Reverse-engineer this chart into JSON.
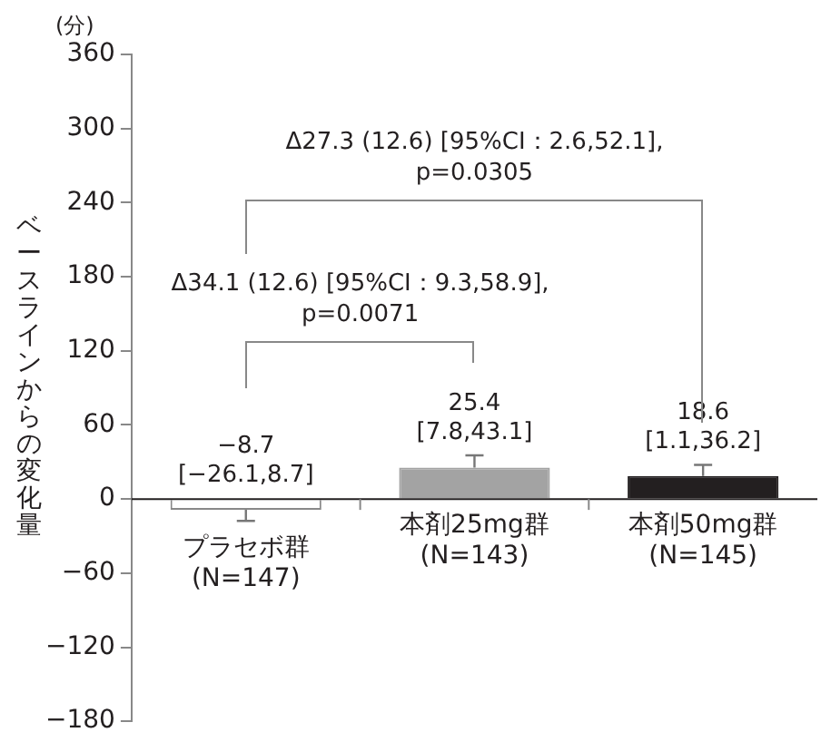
{
  "chart_data": {
    "type": "bar",
    "ylabel": "ベースラインからの変化量",
    "categories": [
      "プラセボ群\n(N=147)",
      "本剤25mg群\n(N=143)",
      "本剤50mg群\n(N=145)"
    ],
    "values": [
      -8.7,
      25.4,
      18.6
    ],
    "colors": [
      "#ffffff",
      "#a3a3a3",
      "#231f20"
    ],
    "errors": [
      9,
      10,
      9
    ],
    "value_labels": [
      "−8.7\n[−26.1,8.7]",
      "25.4\n[7.8,43.1]",
      "18.6\n[1.1,36.2]"
    ],
    "annotations": [
      "Δ34.1 (12.6) [95%CI：9.3,58.9],\np=0.0071",
      "Δ27.3 (12.6) [95%CI：2.6,52.1],\np=0.0305",
      "(分)"
    ],
    "ylim": [
      -180,
      360
    ],
    "yticks": [
      -180,
      -120,
      -60,
      0,
      60,
      120,
      180,
      240,
      300,
      360
    ],
    "grid": false,
    "legend": false
  }
}
